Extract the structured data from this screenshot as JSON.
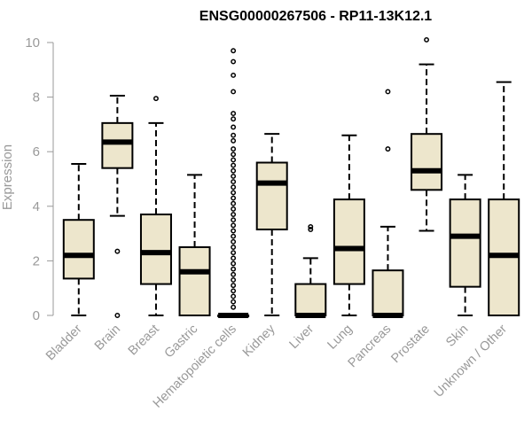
{
  "chart_data": {
    "type": "boxplot",
    "title": "ENSG00000267506 - RP11-13K12.1",
    "xlabel": "",
    "ylabel": "Expression",
    "ylim": [
      0,
      10
    ],
    "yticks": [
      0,
      2,
      4,
      6,
      8,
      10
    ],
    "box_fill": "#ede6cc",
    "axis_color": "#999999",
    "categories": [
      "Bladder",
      "Brain",
      "Breast",
      "Gastric",
      "Hematopoietic cells",
      "Kidney",
      "Liver",
      "Lung",
      "Pancreas",
      "Prostate",
      "Skin",
      "Unknown / Other"
    ],
    "boxes": [
      {
        "name": "Bladder",
        "whisker_low": 0,
        "q1": 1.35,
        "median": 2.2,
        "q3": 3.5,
        "whisker_high": 5.55,
        "outliers": []
      },
      {
        "name": "Brain",
        "whisker_low": 3.65,
        "q1": 5.4,
        "median": 6.35,
        "q3": 7.05,
        "whisker_high": 8.05,
        "outliers": [
          2.35,
          0
        ]
      },
      {
        "name": "Breast",
        "whisker_low": 0,
        "q1": 1.15,
        "median": 2.3,
        "q3": 3.7,
        "whisker_high": 7.05,
        "outliers": [
          7.95
        ]
      },
      {
        "name": "Gastric",
        "whisker_low": 0,
        "q1": 0,
        "median": 1.6,
        "q3": 2.5,
        "whisker_high": 5.15,
        "outliers": []
      },
      {
        "name": "Hematopoietic cells",
        "whisker_low": 0,
        "q1": 0,
        "median": 0,
        "q3": 0,
        "whisker_high": 0,
        "outliers": [
          9.7,
          9.3,
          8.8,
          8.2,
          7.4,
          7.2,
          6.9,
          6.6,
          6.4,
          6.1,
          5.9,
          5.7,
          5.5,
          5.3,
          5.1,
          4.9,
          4.7,
          4.5,
          4.3,
          4.1,
          3.9,
          3.7,
          3.5,
          3.3,
          3.1,
          2.9,
          2.7,
          2.5,
          2.3,
          2.1,
          1.9,
          1.7,
          1.5,
          1.3,
          1.1,
          0.9,
          0.7,
          0.5,
          0.3
        ]
      },
      {
        "name": "Kidney",
        "whisker_low": 0,
        "q1": 3.15,
        "median": 4.85,
        "q3": 5.6,
        "whisker_high": 6.65,
        "outliers": []
      },
      {
        "name": "Liver",
        "whisker_low": 0,
        "q1": 0,
        "median": 0,
        "q3": 1.15,
        "whisker_high": 2.1,
        "outliers": [
          3.15,
          3.25
        ]
      },
      {
        "name": "Lung",
        "whisker_low": 0,
        "q1": 1.15,
        "median": 2.45,
        "q3": 4.25,
        "whisker_high": 6.6,
        "outliers": []
      },
      {
        "name": "Pancreas",
        "whisker_low": 0,
        "q1": 0,
        "median": 0,
        "q3": 1.65,
        "whisker_high": 3.25,
        "outliers": [
          6.1,
          8.2
        ]
      },
      {
        "name": "Prostate",
        "whisker_low": 3.1,
        "q1": 4.6,
        "median": 5.3,
        "q3": 6.65,
        "whisker_high": 9.2,
        "outliers": [
          10.1
        ]
      },
      {
        "name": "Skin",
        "whisker_low": 0,
        "q1": 1.05,
        "median": 2.9,
        "q3": 4.25,
        "whisker_high": 5.15,
        "outliers": []
      },
      {
        "name": "Unknown / Other",
        "whisker_low": 0,
        "q1": 0,
        "median": 2.2,
        "q3": 4.25,
        "whisker_high": 8.55,
        "outliers": []
      }
    ]
  }
}
